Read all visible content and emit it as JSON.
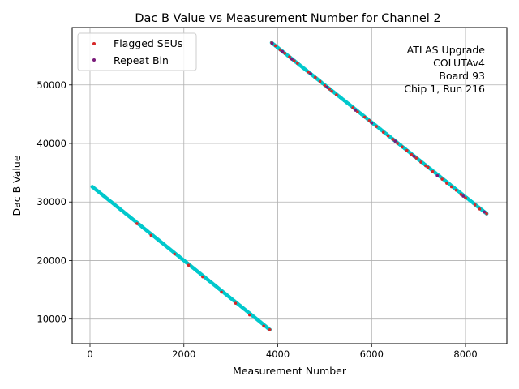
{
  "chart_data": {
    "type": "scatter",
    "title": "Dac B Value vs Measurement Number for Channel 2",
    "xlabel": "Measurement Number",
    "ylabel": "Dac B Value",
    "xlim": [
      -380,
      8880
    ],
    "ylim": [
      5800,
      59800
    ],
    "xticks": [
      0,
      2000,
      4000,
      6000,
      8000
    ],
    "yticks": [
      10000,
      20000,
      30000,
      40000,
      50000
    ],
    "grid": true,
    "legend_position": "top-left",
    "base_color": "#00c8cc",
    "base_segments": [
      {
        "x": [
          50,
          3830
        ],
        "y": [
          32600,
          8200
        ]
      },
      {
        "x": [
          3870,
          8450
        ],
        "y": [
          57200,
          28000
        ]
      }
    ],
    "series": [
      {
        "name": "Flagged SEUs",
        "color": "#d62728",
        "x": [
          3870,
          3950,
          4050,
          4150,
          4250,
          4350,
          4420,
          4650,
          4800,
          4900,
          5000,
          5100,
          5150,
          5250,
          5600,
          5700,
          5850,
          5950,
          6100,
          6250,
          6350,
          6450,
          6550,
          6650,
          6750,
          6850,
          6950,
          7050,
          7150,
          7200,
          7300,
          7500,
          7600,
          7700,
          7800,
          7900,
          8000,
          8200,
          8300,
          8450,
          1000,
          1300,
          1800,
          2100,
          2400,
          2800,
          3100,
          3400,
          3700,
          3830
        ],
        "y": [
          57200,
          56700,
          56000,
          55400,
          54800,
          54100,
          53700,
          52200,
          51300,
          50600,
          49900,
          49300,
          48900,
          48300,
          46100,
          45400,
          44500,
          43900,
          42900,
          41900,
          41300,
          40700,
          40000,
          39400,
          38800,
          38100,
          37500,
          36800,
          36200,
          35900,
          35200,
          33900,
          33200,
          32600,
          32000,
          31300,
          30700,
          29500,
          28800,
          28000,
          26300,
          24300,
          21100,
          19200,
          17200,
          14600,
          12700,
          10700,
          8800,
          8200
        ]
      },
      {
        "name": "Repeat Bin",
        "color": "#7a1a7a",
        "x": [
          3880,
          4100,
          4300,
          4700,
          5050,
          5650,
          6000,
          6500,
          6900,
          7400,
          7950,
          8400
        ],
        "y": [
          57100,
          55700,
          54400,
          51900,
          49600,
          45700,
          43500,
          40400,
          37800,
          34500,
          31000,
          28300
        ]
      }
    ],
    "annotation": [
      "ATLAS Upgrade",
      "COLUTAv4",
      "Board 93",
      "Chip 1, Run 216"
    ]
  }
}
